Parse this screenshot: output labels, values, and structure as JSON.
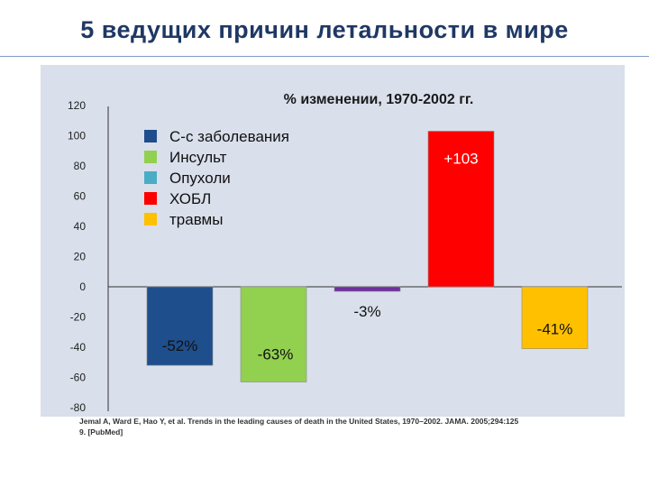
{
  "slide": {
    "title": "5 ведущих причин летальности в мире",
    "citation_line1": "Jemal A, Ward E, Hao Y, et al. Trends in the leading causes of death in the United States, 1970–2002. JAMA. 2005;294:125",
    "citation_line2": "9. [PubMed]"
  },
  "chart_data": {
    "type": "bar",
    "title": "% изменении,  1970-2002 гг.",
    "y_ticks": [
      120,
      100,
      80,
      60,
      40,
      20,
      0,
      -20,
      -40,
      -60,
      -80
    ],
    "ylim": [
      -80,
      120
    ],
    "grid": false,
    "legend_position": "top-left",
    "background": "#d9dfeb",
    "categories": [
      "С-с заболевания",
      "Инсульт",
      "Опухоли",
      "ХОБЛ",
      "травмы"
    ],
    "values": [
      -52,
      -63,
      -3,
      103,
      -41
    ],
    "colors": [
      "#1f4e8c",
      "#92d050",
      "#7030a0",
      "#ff0000",
      "#ffc000"
    ],
    "legend_colors": [
      "#1f4e8c",
      "#92d050",
      "#4bacc6",
      "#ff0000",
      "#ffc000"
    ],
    "data_labels": [
      "-52%",
      "-63%",
      "-3%",
      "+103",
      "-41%"
    ]
  }
}
